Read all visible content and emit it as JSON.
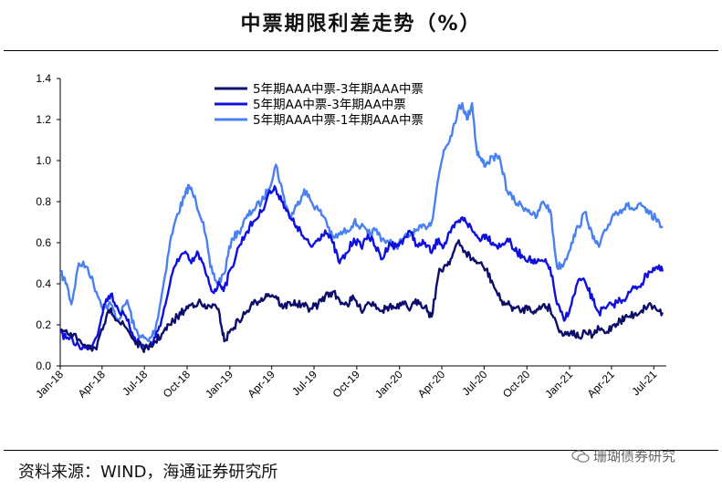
{
  "header": {
    "title": "中票期限利差走势（%）"
  },
  "footer": {
    "source": "资料来源：WIND，海通证券研究所",
    "watermark": "珊瑚债券研究"
  },
  "chart_data": {
    "type": "line",
    "title": "中票期限利差走势（%）",
    "ylim": [
      0,
      1.4
    ],
    "yticks": [
      "0.0",
      "0.2",
      "0.4",
      "0.6",
      "0.8",
      "1.0",
      "1.2",
      "1.4"
    ],
    "x_range": [
      "2018-01",
      "2021-07"
    ],
    "xticks": [
      "Jan-18",
      "Apr-18",
      "Jul-18",
      "Oct-18",
      "Jan-19",
      "Apr-19",
      "Jul-19",
      "Oct-19",
      "Jan-20",
      "Apr-20",
      "Jul-20",
      "Oct-20",
      "Jan-21",
      "Apr-21",
      "Jul-21"
    ],
    "grid": false,
    "legend_position": "top-center",
    "series": [
      {
        "name": "5年期AAA中票-3年期AAA中票",
        "color": "#0d0d6b",
        "points": [
          [
            "2018-01-02",
            0.18
          ],
          [
            "2018-01-20",
            0.15
          ],
          [
            "2018-02-10",
            0.13
          ],
          [
            "2018-03-01",
            0.1
          ],
          [
            "2018-03-20",
            0.08
          ],
          [
            "2018-04-05",
            0.2
          ],
          [
            "2018-04-20",
            0.28
          ],
          [
            "2018-05-05",
            0.22
          ],
          [
            "2018-05-25",
            0.18
          ],
          [
            "2018-06-10",
            0.12
          ],
          [
            "2018-06-25",
            0.09
          ],
          [
            "2018-07-10",
            0.08
          ],
          [
            "2018-07-25",
            0.12
          ],
          [
            "2018-08-10",
            0.16
          ],
          [
            "2018-08-25",
            0.2
          ],
          [
            "2018-09-10",
            0.24
          ],
          [
            "2018-09-25",
            0.27
          ],
          [
            "2018-10-10",
            0.3
          ],
          [
            "2018-10-25",
            0.31
          ],
          [
            "2018-11-10",
            0.28
          ],
          [
            "2018-11-25",
            0.3
          ],
          [
            "2018-12-10",
            0.25
          ],
          [
            "2018-12-20",
            0.12
          ],
          [
            "2019-01-05",
            0.18
          ],
          [
            "2019-01-20",
            0.22
          ],
          [
            "2019-02-05",
            0.26
          ],
          [
            "2019-02-20",
            0.3
          ],
          [
            "2019-03-10",
            0.33
          ],
          [
            "2019-03-25",
            0.35
          ],
          [
            "2019-04-10",
            0.34
          ],
          [
            "2019-04-25",
            0.28
          ],
          [
            "2019-05-10",
            0.31
          ],
          [
            "2019-05-25",
            0.3
          ],
          [
            "2019-06-10",
            0.29
          ],
          [
            "2019-06-25",
            0.28
          ],
          [
            "2019-07-10",
            0.3
          ],
          [
            "2019-07-25",
            0.34
          ],
          [
            "2019-08-10",
            0.36
          ],
          [
            "2019-08-25",
            0.32
          ],
          [
            "2019-09-10",
            0.3
          ],
          [
            "2019-09-25",
            0.33
          ],
          [
            "2019-10-10",
            0.27
          ],
          [
            "2019-10-25",
            0.31
          ],
          [
            "2019-11-10",
            0.3
          ],
          [
            "2019-11-25",
            0.27
          ],
          [
            "2019-12-10",
            0.29
          ],
          [
            "2019-12-25",
            0.28
          ],
          [
            "2020-01-10",
            0.3
          ],
          [
            "2020-01-25",
            0.28
          ],
          [
            "2020-02-10",
            0.32
          ],
          [
            "2020-02-25",
            0.29
          ],
          [
            "2020-03-10",
            0.24
          ],
          [
            "2020-03-25",
            0.45
          ],
          [
            "2020-04-05",
            0.48
          ],
          [
            "2020-04-20",
            0.52
          ],
          [
            "2020-05-05",
            0.6
          ],
          [
            "2020-05-20",
            0.56
          ],
          [
            "2020-06-05",
            0.52
          ],
          [
            "2020-06-20",
            0.5
          ],
          [
            "2020-07-05",
            0.47
          ],
          [
            "2020-07-20",
            0.4
          ],
          [
            "2020-08-05",
            0.32
          ],
          [
            "2020-08-20",
            0.3
          ],
          [
            "2020-09-05",
            0.28
          ],
          [
            "2020-09-20",
            0.27
          ],
          [
            "2020-10-05",
            0.29
          ],
          [
            "2020-10-20",
            0.26
          ],
          [
            "2020-11-05",
            0.3
          ],
          [
            "2020-11-20",
            0.28
          ],
          [
            "2020-12-05",
            0.2
          ],
          [
            "2020-12-20",
            0.15
          ],
          [
            "2021-01-05",
            0.17
          ],
          [
            "2021-01-20",
            0.14
          ],
          [
            "2021-02-05",
            0.16
          ],
          [
            "2021-02-20",
            0.15
          ],
          [
            "2021-03-05",
            0.18
          ],
          [
            "2021-03-20",
            0.16
          ],
          [
            "2021-04-05",
            0.2
          ],
          [
            "2021-04-20",
            0.22
          ],
          [
            "2021-05-05",
            0.24
          ],
          [
            "2021-05-20",
            0.25
          ],
          [
            "2021-06-05",
            0.27
          ],
          [
            "2021-06-20",
            0.3
          ],
          [
            "2021-07-05",
            0.28
          ],
          [
            "2021-07-20",
            0.26
          ]
        ]
      },
      {
        "name": "5年期AA中票-3年期AA中票",
        "color": "#1010dd",
        "points": [
          [
            "2018-01-02",
            0.16
          ],
          [
            "2018-01-20",
            0.13
          ],
          [
            "2018-02-10",
            0.1
          ],
          [
            "2018-03-01",
            0.08
          ],
          [
            "2018-03-20",
            0.14
          ],
          [
            "2018-04-05",
            0.3
          ],
          [
            "2018-04-20",
            0.35
          ],
          [
            "2018-05-05",
            0.28
          ],
          [
            "2018-05-25",
            0.22
          ],
          [
            "2018-06-10",
            0.14
          ],
          [
            "2018-06-25",
            0.1
          ],
          [
            "2018-07-10",
            0.09
          ],
          [
            "2018-07-25",
            0.14
          ],
          [
            "2018-08-10",
            0.25
          ],
          [
            "2018-08-25",
            0.4
          ],
          [
            "2018-09-10",
            0.52
          ],
          [
            "2018-09-25",
            0.55
          ],
          [
            "2018-10-10",
            0.5
          ],
          [
            "2018-10-25",
            0.55
          ],
          [
            "2018-11-10",
            0.45
          ],
          [
            "2018-11-25",
            0.36
          ],
          [
            "2018-12-10",
            0.4
          ],
          [
            "2018-12-20",
            0.38
          ],
          [
            "2019-01-05",
            0.48
          ],
          [
            "2019-01-20",
            0.58
          ],
          [
            "2019-02-05",
            0.65
          ],
          [
            "2019-02-20",
            0.7
          ],
          [
            "2019-03-10",
            0.75
          ],
          [
            "2019-03-25",
            0.84
          ],
          [
            "2019-04-10",
            0.86
          ],
          [
            "2019-04-25",
            0.8
          ],
          [
            "2019-05-10",
            0.72
          ],
          [
            "2019-05-25",
            0.68
          ],
          [
            "2019-06-10",
            0.62
          ],
          [
            "2019-06-25",
            0.58
          ],
          [
            "2019-07-10",
            0.62
          ],
          [
            "2019-07-25",
            0.66
          ],
          [
            "2019-08-10",
            0.6
          ],
          [
            "2019-08-25",
            0.5
          ],
          [
            "2019-09-10",
            0.55
          ],
          [
            "2019-09-25",
            0.62
          ],
          [
            "2019-10-10",
            0.58
          ],
          [
            "2019-10-25",
            0.64
          ],
          [
            "2019-11-10",
            0.58
          ],
          [
            "2019-11-25",
            0.52
          ],
          [
            "2019-12-10",
            0.6
          ],
          [
            "2019-12-25",
            0.58
          ],
          [
            "2020-01-10",
            0.62
          ],
          [
            "2020-01-25",
            0.65
          ],
          [
            "2020-02-10",
            0.58
          ],
          [
            "2020-02-25",
            0.6
          ],
          [
            "2020-03-10",
            0.55
          ],
          [
            "2020-03-25",
            0.62
          ],
          [
            "2020-04-05",
            0.58
          ],
          [
            "2020-04-20",
            0.65
          ],
          [
            "2020-05-05",
            0.7
          ],
          [
            "2020-05-20",
            0.72
          ],
          [
            "2020-06-05",
            0.66
          ],
          [
            "2020-06-20",
            0.62
          ],
          [
            "2020-07-05",
            0.64
          ],
          [
            "2020-07-20",
            0.6
          ],
          [
            "2020-08-05",
            0.58
          ],
          [
            "2020-08-20",
            0.62
          ],
          [
            "2020-09-05",
            0.56
          ],
          [
            "2020-09-20",
            0.54
          ],
          [
            "2020-10-05",
            0.52
          ],
          [
            "2020-10-20",
            0.5
          ],
          [
            "2020-11-05",
            0.51
          ],
          [
            "2020-11-20",
            0.48
          ],
          [
            "2020-12-05",
            0.3
          ],
          [
            "2020-12-20",
            0.22
          ],
          [
            "2021-01-05",
            0.3
          ],
          [
            "2021-01-20",
            0.42
          ],
          [
            "2021-02-05",
            0.4
          ],
          [
            "2021-02-20",
            0.32
          ],
          [
            "2021-03-05",
            0.26
          ],
          [
            "2021-03-20",
            0.28
          ],
          [
            "2021-04-05",
            0.3
          ],
          [
            "2021-04-20",
            0.32
          ],
          [
            "2021-05-05",
            0.34
          ],
          [
            "2021-05-20",
            0.38
          ],
          [
            "2021-06-05",
            0.4
          ],
          [
            "2021-06-20",
            0.46
          ],
          [
            "2021-07-05",
            0.48
          ],
          [
            "2021-07-20",
            0.46
          ]
        ]
      },
      {
        "name": "5年期AAA中票-1年期AAA中票",
        "color": "#4a80f0",
        "points": [
          [
            "2018-01-02",
            0.45
          ],
          [
            "2018-01-15",
            0.4
          ],
          [
            "2018-01-25",
            0.3
          ],
          [
            "2018-02-10",
            0.5
          ],
          [
            "2018-03-01",
            0.48
          ],
          [
            "2018-03-20",
            0.36
          ],
          [
            "2018-04-05",
            0.28
          ],
          [
            "2018-04-20",
            0.3
          ],
          [
            "2018-05-05",
            0.22
          ],
          [
            "2018-05-25",
            0.32
          ],
          [
            "2018-06-10",
            0.18
          ],
          [
            "2018-06-25",
            0.14
          ],
          [
            "2018-07-10",
            0.12
          ],
          [
            "2018-07-25",
            0.18
          ],
          [
            "2018-08-10",
            0.38
          ],
          [
            "2018-08-25",
            0.6
          ],
          [
            "2018-09-10",
            0.74
          ],
          [
            "2018-09-25",
            0.82
          ],
          [
            "2018-10-05",
            0.88
          ],
          [
            "2018-10-20",
            0.8
          ],
          [
            "2018-11-05",
            0.7
          ],
          [
            "2018-11-20",
            0.48
          ],
          [
            "2018-12-05",
            0.4
          ],
          [
            "2018-12-20",
            0.45
          ],
          [
            "2019-01-05",
            0.62
          ],
          [
            "2019-01-20",
            0.65
          ],
          [
            "2019-02-05",
            0.72
          ],
          [
            "2019-02-20",
            0.76
          ],
          [
            "2019-03-10",
            0.8
          ],
          [
            "2019-03-25",
            0.86
          ],
          [
            "2019-04-10",
            0.98
          ],
          [
            "2019-04-25",
            0.84
          ],
          [
            "2019-05-10",
            0.72
          ],
          [
            "2019-05-25",
            0.78
          ],
          [
            "2019-06-10",
            0.86
          ],
          [
            "2019-06-25",
            0.8
          ],
          [
            "2019-07-10",
            0.76
          ],
          [
            "2019-07-25",
            0.72
          ],
          [
            "2019-08-10",
            0.62
          ],
          [
            "2019-08-25",
            0.64
          ],
          [
            "2019-09-10",
            0.66
          ],
          [
            "2019-09-25",
            0.7
          ],
          [
            "2019-10-10",
            0.68
          ],
          [
            "2019-10-25",
            0.64
          ],
          [
            "2019-11-10",
            0.66
          ],
          [
            "2019-11-25",
            0.62
          ],
          [
            "2019-12-10",
            0.6
          ],
          [
            "2019-12-25",
            0.58
          ],
          [
            "2020-01-10",
            0.62
          ],
          [
            "2020-01-25",
            0.64
          ],
          [
            "2020-02-10",
            0.66
          ],
          [
            "2020-02-25",
            0.68
          ],
          [
            "2020-03-10",
            0.7
          ],
          [
            "2020-03-25",
            0.92
          ],
          [
            "2020-04-05",
            1.05
          ],
          [
            "2020-04-20",
            1.12
          ],
          [
            "2020-05-05",
            1.24
          ],
          [
            "2020-05-15",
            1.28
          ],
          [
            "2020-05-25",
            1.2
          ],
          [
            "2020-06-05",
            1.28
          ],
          [
            "2020-06-15",
            1.05
          ],
          [
            "2020-06-25",
            1.0
          ],
          [
            "2020-07-05",
            0.98
          ],
          [
            "2020-07-20",
            1.02
          ],
          [
            "2020-08-05",
            1.0
          ],
          [
            "2020-08-20",
            0.85
          ],
          [
            "2020-09-05",
            0.8
          ],
          [
            "2020-09-20",
            0.78
          ],
          [
            "2020-10-05",
            0.76
          ],
          [
            "2020-10-20",
            0.72
          ],
          [
            "2020-11-05",
            0.8
          ],
          [
            "2020-11-20",
            0.76
          ],
          [
            "2020-12-05",
            0.48
          ],
          [
            "2020-12-20",
            0.5
          ],
          [
            "2021-01-05",
            0.6
          ],
          [
            "2021-01-20",
            0.68
          ],
          [
            "2021-02-05",
            0.75
          ],
          [
            "2021-02-20",
            0.62
          ],
          [
            "2021-03-05",
            0.58
          ],
          [
            "2021-03-20",
            0.66
          ],
          [
            "2021-04-05",
            0.74
          ],
          [
            "2021-04-20",
            0.76
          ],
          [
            "2021-05-05",
            0.78
          ],
          [
            "2021-05-20",
            0.76
          ],
          [
            "2021-06-05",
            0.78
          ],
          [
            "2021-06-20",
            0.74
          ],
          [
            "2021-07-05",
            0.72
          ],
          [
            "2021-07-20",
            0.68
          ]
        ]
      }
    ]
  }
}
